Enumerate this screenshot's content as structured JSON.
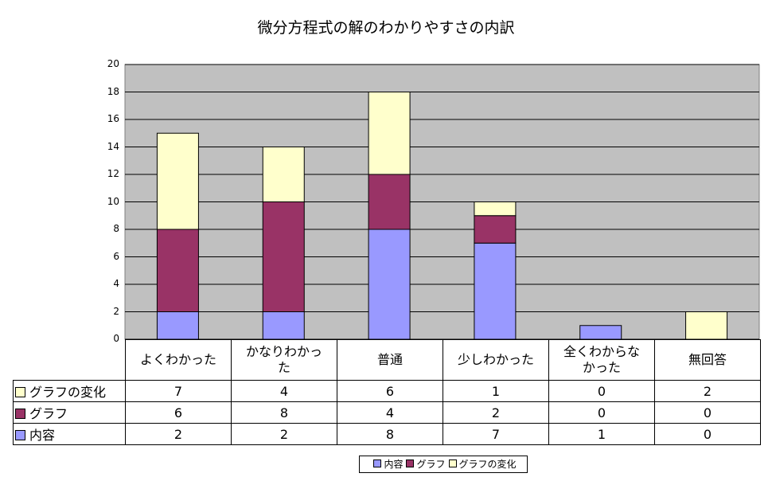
{
  "chart_data": {
    "type": "bar",
    "stacked": true,
    "title": "微分方程式の解のわかりやすさの内訳",
    "categories": [
      "よくわかった",
      "かなりわかった",
      "普通",
      "少しわかった",
      "全くわからなかった",
      "無回答"
    ],
    "category_display": [
      "よくわかった",
      "かなりわかっ\nた",
      "普通",
      "少しわかった",
      "全くわからな\nかった",
      "無回答"
    ],
    "ylim": [
      0,
      20
    ],
    "yticks": [
      "0",
      "2",
      "4",
      "6",
      "8",
      "10",
      "12",
      "14",
      "16",
      "18",
      "20"
    ],
    "grid": true,
    "plot_background": "#c0c0c0",
    "legend_position": "bottom",
    "series": [
      {
        "name": "内容",
        "color": "#9999ff",
        "values": [
          2,
          2,
          8,
          7,
          1,
          0
        ]
      },
      {
        "name": "グラフ",
        "color": "#993366",
        "values": [
          6,
          8,
          4,
          2,
          0,
          0
        ]
      },
      {
        "name": "グラフの変化",
        "color": "#ffffcc",
        "values": [
          7,
          4,
          6,
          1,
          0,
          2
        ]
      }
    ],
    "table_row_order": [
      2,
      1,
      0
    ]
  }
}
